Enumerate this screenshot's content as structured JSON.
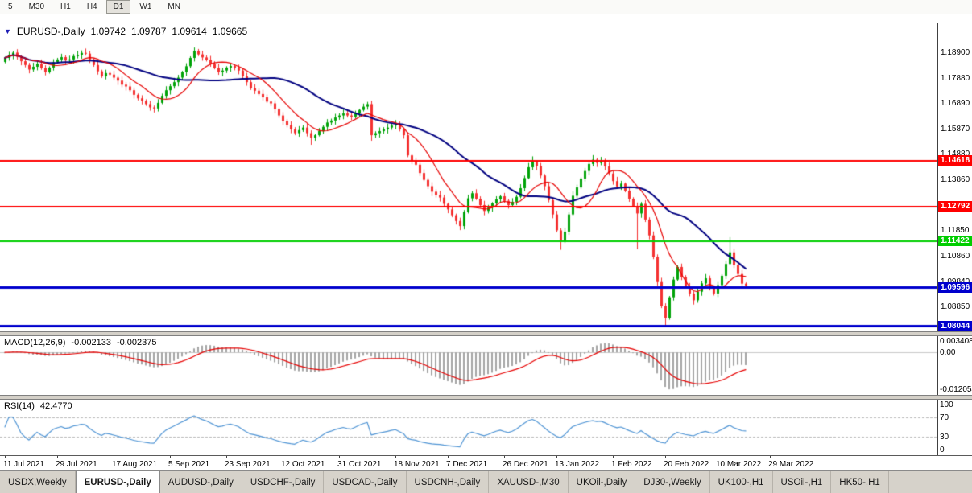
{
  "toolbar": {
    "periods": [
      {
        "label": "5",
        "active": false
      },
      {
        "label": "M30",
        "active": false
      },
      {
        "label": "H1",
        "active": false
      },
      {
        "label": "H4",
        "active": false
      },
      {
        "label": "D1",
        "active": true
      },
      {
        "label": "W1",
        "active": false
      },
      {
        "label": "MN",
        "active": false
      }
    ]
  },
  "chart": {
    "title": {
      "symbol": "EURUSD-,Daily",
      "open": "1.09742",
      "high": "1.09787",
      "low": "1.09614",
      "close": "1.09665"
    },
    "price_ticks": [
      "1.18900",
      "1.17880",
      "1.16890",
      "1.15870",
      "1.14880",
      "1.13860",
      "1.12870",
      "1.11850",
      "1.10860",
      "1.09840",
      "1.08850",
      "1.07860"
    ]
  },
  "macd": {
    "label": "MACD(12,26,9)",
    "value_main": "-0.002133",
    "value_signal": "-0.002375",
    "scale_max": "0.003408",
    "scale_zero": "0.00",
    "scale_min": "-0.012054"
  },
  "rsi": {
    "label": "RSI(14)",
    "value": "42.4770",
    "scale": [
      "100",
      "70",
      "30",
      "0"
    ]
  },
  "time_axis": [
    {
      "text": "11 Jul 2021",
      "i": 0
    },
    {
      "text": "29 Jul 2021",
      "i": 13
    },
    {
      "text": "17 Aug 2021",
      "i": 27
    },
    {
      "text": "5 Sep 2021",
      "i": 41
    },
    {
      "text": "23 Sep 2021",
      "i": 55
    },
    {
      "text": "12 Oct 2021",
      "i": 69
    },
    {
      "text": "31 Oct 2021",
      "i": 83
    },
    {
      "text": "18 Nov 2021",
      "i": 97
    },
    {
      "text": "7 Dec 2021",
      "i": 110
    },
    {
      "text": "26 Dec 2021",
      "i": 124
    },
    {
      "text": "13 Jan 2022",
      "i": 137
    },
    {
      "text": "1 Feb 2022",
      "i": 151
    },
    {
      "text": "20 Feb 2022",
      "i": 164
    },
    {
      "text": "10 Mar 2022",
      "i": 177
    },
    {
      "text": "29 Mar 2022",
      "i": 190
    }
  ],
  "tabs": [
    {
      "label": "USDX,Weekly",
      "active": false
    },
    {
      "label": "EURUSD-,Daily",
      "active": true
    },
    {
      "label": "AUDUSD-,Daily",
      "active": false
    },
    {
      "label": "USDCHF-,Daily",
      "active": false
    },
    {
      "label": "USDCAD-,Daily",
      "active": false
    },
    {
      "label": "USDCNH-,Daily",
      "active": false
    },
    {
      "label": "XAUUSD-,M30",
      "active": false
    },
    {
      "label": "UKOil-,Daily",
      "active": false
    },
    {
      "label": "DJ30-,Weekly",
      "active": false
    },
    {
      "label": "UK100-,H1",
      "active": false
    },
    {
      "label": "USOil-,H1",
      "active": false
    },
    {
      "label": "HK50-,H1",
      "active": false
    }
  ],
  "chart_data": {
    "type": "candlestick",
    "symbol": "EURUSD-",
    "timeframe": "Daily",
    "ohlc_display": {
      "open": 1.09742,
      "high": 1.09787,
      "low": 1.09614,
      "close": 1.09665
    },
    "y_range": [
      1.0785,
      1.2005
    ],
    "first_open": 1.1852,
    "closes": [
      1.1868,
      1.188,
      1.1889,
      1.1872,
      1.1855,
      1.184,
      1.1822,
      1.1833,
      1.1845,
      1.1828,
      1.1812,
      1.183,
      1.1851,
      1.1862,
      1.1871,
      1.1858,
      1.1862,
      1.1875,
      1.188,
      1.1888,
      1.1885,
      1.1862,
      1.184,
      1.1815,
      1.1795,
      1.1808,
      1.1802,
      1.179,
      1.1778,
      1.1762,
      1.1755,
      1.174,
      1.1722,
      1.1708,
      1.1698,
      1.1685,
      1.1672,
      1.1668,
      1.169,
      1.1718,
      1.174,
      1.1756,
      1.1772,
      1.179,
      1.1812,
      1.1835,
      1.1868,
      1.1896,
      1.1882,
      1.187,
      1.186,
      1.1845,
      1.1828,
      1.1812,
      1.1818,
      1.183,
      1.1836,
      1.1828,
      1.1818,
      1.1795,
      1.1772,
      1.1748,
      1.1738,
      1.1725,
      1.1712,
      1.1695,
      1.1688,
      1.1665,
      1.164,
      1.1618,
      1.1602,
      1.1585,
      1.157,
      1.1582,
      1.1592,
      1.157,
      1.1552,
      1.1562,
      1.1578,
      1.1595,
      1.1612,
      1.162,
      1.1632,
      1.164,
      1.1648,
      1.164,
      1.1635,
      1.1648,
      1.1662,
      1.1675,
      1.1685,
      1.1562,
      1.157,
      1.1578,
      1.1585,
      1.1592,
      1.16,
      1.1605,
      1.1585,
      1.1562,
      1.1482,
      1.146,
      1.1445,
      1.1412,
      1.1385,
      1.136,
      1.1338,
      1.1325,
      1.1315,
      1.129,
      1.1268,
      1.1245,
      1.1222,
      1.1202,
      1.1258,
      1.1312,
      1.1332,
      1.131,
      1.1285,
      1.1262,
      1.1275,
      1.1292,
      1.1308,
      1.132,
      1.1302,
      1.1285,
      1.1298,
      1.1318,
      1.1352,
      1.1392,
      1.1435,
      1.1458,
      1.144,
      1.1402,
      1.136,
      1.1305,
      1.1248,
      1.1185,
      1.1142,
      1.118,
      1.1248,
      1.1322,
      1.1355,
      1.139,
      1.142,
      1.1448,
      1.1465,
      1.1452,
      1.146,
      1.1438,
      1.141,
      1.138,
      1.1358,
      1.137,
      1.1342,
      1.131,
      1.1282,
      1.1252,
      1.129,
      1.1228,
      1.1165,
      1.108,
      1.098,
      1.0885,
      1.0838,
      1.092,
      1.099,
      1.104,
      1.1,
      1.0962,
      1.0935,
      1.0908,
      1.0942,
      1.0975,
      1.0995,
      1.0962,
      1.0935,
      1.0968,
      1.1005,
      1.1052,
      1.1098,
      1.1048,
      1.1012,
      1.0974,
      1.0966
    ],
    "special_wicks": {
      "37": {
        "l": 1.1652
      },
      "47": {
        "h": 1.1909
      },
      "76": {
        "l": 1.1524
      },
      "90": {
        "h": 1.1694
      },
      "91": {
        "l": 1.154
      },
      "113": {
        "l": 1.1186
      },
      "131": {
        "h": 1.1478
      },
      "138": {
        "l": 1.1108
      },
      "146": {
        "h": 1.1483
      },
      "148": {
        "h": 1.1476
      },
      "157": {
        "l": 1.111
      },
      "164": {
        "l": 1.0805
      },
      "180": {
        "h": 1.1158
      },
      "184": {
        "h": 1.09787,
        "l": 1.09614
      }
    },
    "levels": [
      {
        "price": 1.14618,
        "label": "1.14618",
        "color": "#ff0000",
        "line_width": 2
      },
      {
        "price": 1.12792,
        "label": "1.12792",
        "color": "#ff0000",
        "line_width": 2
      },
      {
        "price": 1.11422,
        "label": "1.11422",
        "color": "#00ce00",
        "line_width": 2
      },
      {
        "price": 1.09596,
        "label": "1.09596",
        "color": "#0000cd",
        "line_width": 3
      },
      {
        "price": 1.08044,
        "label": "1.08044",
        "color": "#0000cd",
        "line_width": 3
      }
    ],
    "overlays": {
      "ma_fast_period": 10,
      "ma_slow_period": 30
    },
    "macd": {
      "params": [
        12,
        26,
        9
      ],
      "last_main": -0.002133,
      "last_signal": -0.002375,
      "scale_max": 0.003408,
      "scale_min": -0.012054
    },
    "rsi": {
      "period": 14,
      "last": 42.477,
      "levels": [
        70,
        30
      ]
    },
    "colors": {
      "bull": "#00a308",
      "bear": "#f43131",
      "ma_fast": "#e60000",
      "ma_slow": "#000080",
      "macd_hist": "#a4a4a4",
      "macd_signal": "#e60000",
      "rsi": "#4f94d4",
      "zero_line": "#c8c8c8",
      "rsi_level": "#b8b8b8"
    }
  }
}
